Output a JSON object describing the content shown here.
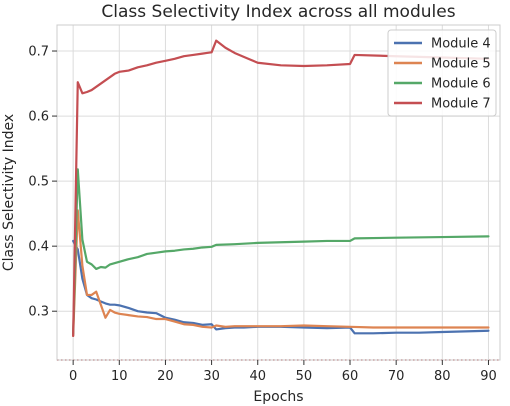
{
  "chart_data": {
    "type": "line",
    "title": "Class Selectivity Index across all modules",
    "xlabel": "Epochs",
    "ylabel": "Class Selectivity Index",
    "xlim": [
      -3.5,
      92.5
    ],
    "ylim": [
      0.225,
      0.74
    ],
    "xticks": [
      0,
      10,
      20,
      30,
      40,
      50,
      60,
      70,
      80,
      90
    ],
    "yticks": [
      0.3,
      0.4,
      0.5,
      0.6,
      0.7
    ],
    "grid": true,
    "legend_position": "top-right",
    "baseline": {
      "y": 0.225,
      "style": "dotted",
      "color": "#c44e52"
    },
    "series": [
      {
        "name": "Module 4",
        "color": "#4c72b0",
        "x": [
          0,
          1,
          2,
          3,
          4,
          5,
          6,
          7,
          8,
          9,
          10,
          12,
          14,
          16,
          18,
          20,
          22,
          24,
          26,
          28,
          30,
          31,
          33,
          35,
          37,
          40,
          45,
          50,
          55,
          60,
          61,
          65,
          70,
          75,
          80,
          85,
          90
        ],
        "y": [
          0.408,
          0.395,
          0.35,
          0.325,
          0.32,
          0.318,
          0.315,
          0.312,
          0.31,
          0.31,
          0.309,
          0.305,
          0.3,
          0.298,
          0.297,
          0.29,
          0.287,
          0.283,
          0.282,
          0.279,
          0.28,
          0.272,
          0.274,
          0.275,
          0.275,
          0.276,
          0.276,
          0.275,
          0.274,
          0.275,
          0.266,
          0.266,
          0.267,
          0.267,
          0.268,
          0.269,
          0.27
        ]
      },
      {
        "name": "Module 5",
        "color": "#dd8452",
        "x": [
          0,
          1,
          2,
          3,
          4,
          5,
          6,
          7,
          8,
          9,
          10,
          12,
          14,
          16,
          18,
          20,
          22,
          24,
          26,
          28,
          30,
          31,
          33,
          35,
          40,
          45,
          50,
          55,
          60,
          65,
          70,
          75,
          80,
          85,
          90
        ],
        "y": [
          0.262,
          0.455,
          0.37,
          0.325,
          0.325,
          0.33,
          0.31,
          0.29,
          0.302,
          0.298,
          0.296,
          0.294,
          0.292,
          0.291,
          0.288,
          0.288,
          0.284,
          0.28,
          0.279,
          0.276,
          0.275,
          0.278,
          0.276,
          0.277,
          0.277,
          0.277,
          0.278,
          0.277,
          0.276,
          0.275,
          0.275,
          0.275,
          0.275,
          0.275,
          0.275
        ]
      },
      {
        "name": "Module 6",
        "color": "#55a868",
        "x": [
          0,
          1,
          2,
          3,
          4,
          5,
          6,
          7,
          8,
          10,
          12,
          14,
          16,
          18,
          20,
          22,
          24,
          26,
          28,
          30,
          31,
          35,
          40,
          45,
          50,
          55,
          60,
          61,
          70,
          80,
          90
        ],
        "y": [
          0.265,
          0.518,
          0.41,
          0.376,
          0.372,
          0.365,
          0.368,
          0.367,
          0.372,
          0.376,
          0.38,
          0.383,
          0.388,
          0.39,
          0.392,
          0.393,
          0.395,
          0.396,
          0.398,
          0.399,
          0.402,
          0.403,
          0.405,
          0.406,
          0.407,
          0.408,
          0.408,
          0.412,
          0.413,
          0.414,
          0.415
        ]
      },
      {
        "name": "Module 7",
        "color": "#c44e52",
        "x": [
          0,
          1,
          2,
          3,
          4,
          5,
          6,
          7,
          8,
          9,
          10,
          12,
          14,
          16,
          18,
          20,
          22,
          24,
          26,
          28,
          29,
          30,
          31,
          33,
          35,
          38,
          40,
          45,
          50,
          55,
          60,
          61,
          70,
          80,
          90
        ],
        "y": [
          0.262,
          0.652,
          0.635,
          0.637,
          0.64,
          0.645,
          0.65,
          0.655,
          0.66,
          0.665,
          0.668,
          0.67,
          0.675,
          0.678,
          0.682,
          0.685,
          0.688,
          0.692,
          0.694,
          0.696,
          0.697,
          0.698,
          0.716,
          0.705,
          0.697,
          0.688,
          0.682,
          0.678,
          0.677,
          0.678,
          0.68,
          0.694,
          0.692,
          0.69,
          0.688
        ]
      }
    ]
  }
}
